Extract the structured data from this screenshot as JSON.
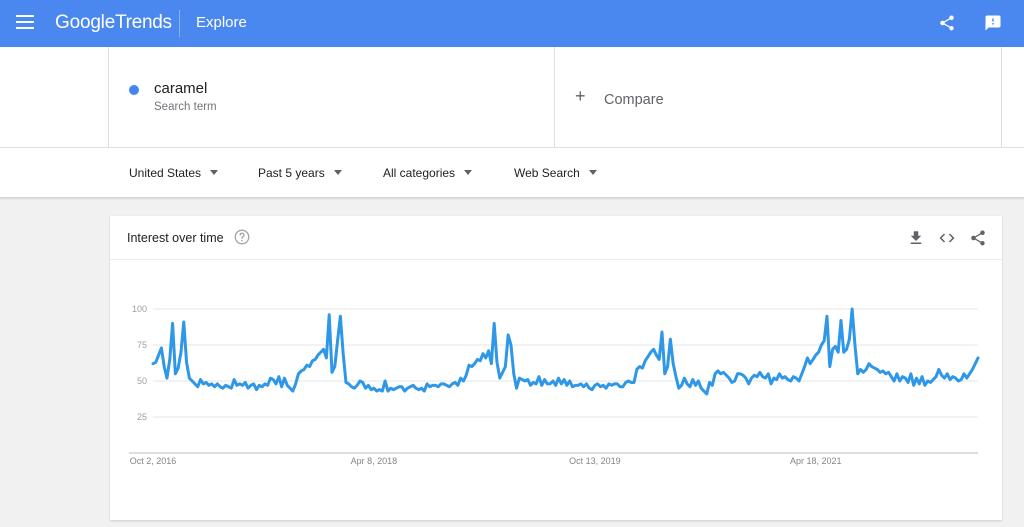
{
  "header": {
    "logo_google": "Google",
    "logo_trends": "Trends",
    "section": "Explore",
    "icons": [
      "menu-icon",
      "share-icon",
      "feedback-icon"
    ]
  },
  "term": {
    "name": "caramel",
    "subtitle": "Search term",
    "color": "#4285f4"
  },
  "compare": {
    "plus": "+",
    "label": "Compare"
  },
  "filters": {
    "region": "United States",
    "time": "Past 5 years",
    "category": "All categories",
    "search_type": "Web Search"
  },
  "card": {
    "title": "Interest over time",
    "icons": [
      "help-icon",
      "download-icon",
      "embed-icon",
      "share-icon"
    ]
  },
  "colors": {
    "header": "#4a88f0",
    "line": "#2f97e7",
    "accent": "#4285f4"
  },
  "chart_data": {
    "type": "line",
    "x_labels": [
      "Oct 2, 2016",
      "Apr 8, 2018",
      "Oct 13, 2019",
      "Apr 18, 2021"
    ],
    "x_label_positions": [
      0,
      79,
      158,
      237
    ],
    "yticks": [
      25,
      50,
      75,
      100
    ],
    "ylim": [
      0,
      100
    ],
    "grid": true,
    "series": [
      {
        "name": "caramel",
        "values": [
          62,
          63,
          68,
          73,
          60,
          52,
          65,
          90,
          55,
          59,
          70,
          91,
          63,
          52,
          50,
          48,
          46,
          51,
          48,
          49,
          47,
          48,
          46,
          48,
          46,
          45,
          47,
          46,
          45,
          51,
          47,
          48,
          47,
          49,
          45,
          47,
          48,
          44,
          47,
          46,
          48,
          47,
          52,
          51,
          48,
          53,
          46,
          52,
          47,
          45,
          43,
          48,
          55,
          57,
          58,
          61,
          60,
          64,
          65,
          68,
          70,
          72,
          66,
          96,
          56,
          60,
          78,
          95,
          69,
          49,
          48,
          46,
          45,
          47,
          50,
          49,
          45,
          47,
          44,
          45,
          43,
          44,
          43,
          50,
          43,
          45,
          44,
          45,
          46,
          46,
          43,
          45,
          46,
          47,
          45,
          44,
          45,
          43,
          48,
          46,
          47,
          47,
          46,
          48,
          48,
          47,
          46,
          48,
          49,
          47,
          52,
          50,
          54,
          61,
          60,
          62,
          65,
          64,
          69,
          66,
          71,
          62,
          90,
          63,
          52,
          56,
          60,
          82,
          75,
          55,
          45,
          52,
          51,
          50,
          51,
          47,
          49,
          48,
          53,
          47,
          51,
          48,
          48,
          50,
          47,
          52,
          48,
          51,
          47,
          50,
          46,
          47,
          47,
          48,
          46,
          48,
          45,
          44,
          47,
          48,
          46,
          47,
          45,
          48,
          47,
          48,
          48,
          46,
          46,
          49,
          50,
          49,
          49,
          58,
          60,
          59,
          64,
          67,
          70,
          72,
          68,
          65,
          84,
          55,
          60,
          79,
          62,
          53,
          45,
          47,
          52,
          48,
          46,
          51,
          47,
          50,
          45,
          43,
          41,
          49,
          47,
          55,
          57,
          55,
          56,
          54,
          52,
          49,
          50,
          55,
          55,
          54,
          52,
          48,
          52,
          54,
          53,
          56,
          53,
          52,
          55,
          48,
          52,
          51,
          55,
          52,
          53,
          51,
          50,
          53,
          52,
          50,
          55,
          60,
          66,
          62,
          65,
          68,
          70,
          75,
          78,
          95,
          60,
          72,
          74,
          70,
          92,
          70,
          72,
          79,
          100,
          75,
          55,
          58,
          56,
          58,
          62,
          60,
          59,
          58,
          56,
          57,
          55,
          56,
          53,
          50,
          55,
          50,
          53,
          52,
          49,
          55,
          47,
          52,
          48,
          53,
          47,
          50,
          49,
          51,
          53,
          58,
          54,
          52,
          55,
          51,
          53,
          52,
          50,
          51,
          55,
          52,
          55,
          58,
          62,
          66
        ]
      }
    ]
  }
}
